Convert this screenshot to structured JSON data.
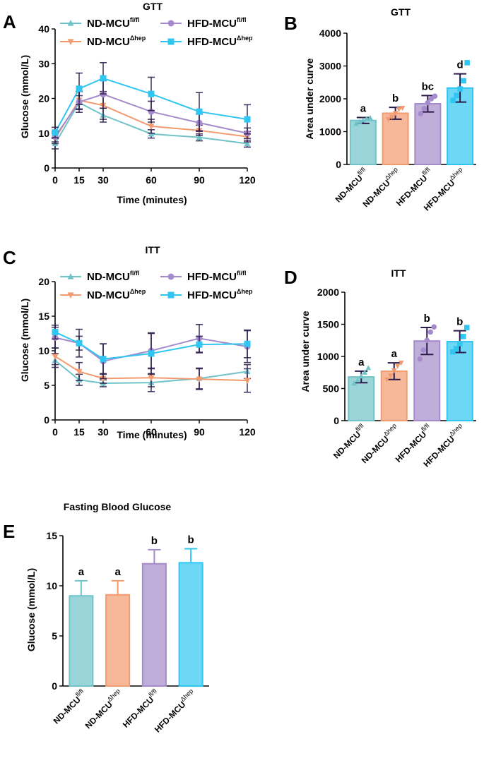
{
  "colors": {
    "nd_fl": "#6fc3c9",
    "nd_hep": "#f39a6f",
    "hfd_fl": "#a58bcb",
    "hfd_hep": "#2fc6f2",
    "err_dark": "#2b1a4a"
  },
  "groups": [
    {
      "key": "nd_fl",
      "base": "ND-MCU",
      "sup": "fl/fl",
      "marker": "triangle-up"
    },
    {
      "key": "nd_hep",
      "base": "ND-MCU",
      "sup": "Δhep",
      "marker": "triangle-down"
    },
    {
      "key": "hfd_fl",
      "base": "HFD-MCU",
      "sup": "fl/fl",
      "marker": "circle"
    },
    {
      "key": "hfd_hep",
      "base": "HFD-MCU",
      "sup": "Δhep",
      "marker": "square"
    }
  ],
  "chart_data": [
    {
      "id": "A",
      "letter": "A",
      "type": "line",
      "title": "GTT",
      "xlabel": "Time (minutes)",
      "ylabel": "Glucose (mmol/L)",
      "x": [
        0,
        15,
        30,
        60,
        90,
        120
      ],
      "ylim": [
        0,
        40
      ],
      "yticks": [
        0,
        10,
        20,
        30,
        40
      ],
      "series": [
        {
          "key": "nd_fl",
          "values": [
            7.0,
            18.8,
            15.2,
            9.8,
            8.8,
            7.0
          ],
          "err": [
            1.5,
            2.0,
            2.0,
            1.2,
            1.0,
            1.0
          ]
        },
        {
          "key": "nd_hep",
          "values": [
            8.5,
            19.5,
            18.0,
            12.0,
            10.8,
            9.0
          ],
          "err": [
            1.5,
            2.5,
            4.0,
            2.0,
            1.5,
            1.5
          ]
        },
        {
          "key": "hfd_fl",
          "values": [
            9.0,
            19.0,
            21.2,
            16.2,
            13.0,
            10.0
          ],
          "err": [
            1.5,
            3.0,
            4.0,
            3.0,
            2.5,
            1.5
          ]
        },
        {
          "key": "hfd_hep",
          "values": [
            10.2,
            22.8,
            25.8,
            21.3,
            16.2,
            14.0
          ],
          "err": [
            1.5,
            4.5,
            4.5,
            4.8,
            5.5,
            4.2
          ]
        }
      ]
    },
    {
      "id": "B",
      "letter": "B",
      "type": "bar",
      "title": "GTT",
      "xlabel": "",
      "ylabel": "Area under curve",
      "ylim": [
        0,
        4000
      ],
      "yticks": [
        0,
        1000,
        2000,
        3000,
        4000
      ],
      "bars": [
        {
          "key": "nd_fl",
          "value": 1340,
          "err": 90,
          "sig": "a",
          "points": [
            1240,
            1300,
            1350,
            1390,
            1420
          ]
        },
        {
          "key": "nd_hep",
          "value": 1560,
          "err": 180,
          "sig": "b",
          "points": [
            1380,
            1450,
            1560,
            1680,
            1720
          ]
        },
        {
          "key": "hfd_fl",
          "value": 1850,
          "err": 250,
          "sig": "bc",
          "points": [
            1550,
            1700,
            1880,
            2000,
            2080
          ]
        },
        {
          "key": "hfd_hep",
          "value": 2330,
          "err": 430,
          "sig": "d",
          "points": [
            1950,
            2100,
            2300,
            2550,
            3100
          ]
        }
      ]
    },
    {
      "id": "C",
      "letter": "C",
      "type": "line",
      "title": "ITT",
      "xlabel": "Time (minutes)",
      "ylabel": "Glucose (mmol/L)",
      "x": [
        0,
        15,
        30,
        60,
        90,
        120
      ],
      "ylim": [
        0,
        20
      ],
      "yticks": [
        0,
        5,
        10,
        15,
        20
      ],
      "series": [
        {
          "key": "nd_fl",
          "values": [
            8.6,
            5.8,
            5.3,
            5.4,
            6.0,
            7.0
          ],
          "err": [
            1.0,
            0.8,
            0.5,
            1.3,
            1.5,
            1.0
          ]
        },
        {
          "key": "nd_hep",
          "values": [
            9.2,
            7.0,
            6.0,
            6.1,
            5.9,
            5.7
          ],
          "err": [
            1.2,
            1.3,
            0.7,
            1.3,
            1.5,
            1.7
          ]
        },
        {
          "key": "hfd_fl",
          "values": [
            11.9,
            11.1,
            8.5,
            10.0,
            11.8,
            10.6
          ],
          "err": [
            1.5,
            2.0,
            2.5,
            2.5,
            2.0,
            2.3
          ]
        },
        {
          "key": "hfd_hep",
          "values": [
            12.7,
            11.1,
            8.8,
            9.6,
            10.9,
            11.0
          ],
          "err": [
            1.0,
            1.0,
            2.2,
            3.0,
            1.2,
            2.0
          ]
        }
      ]
    },
    {
      "id": "D",
      "letter": "D",
      "type": "bar",
      "title": "ITT",
      "xlabel": "",
      "ylabel": "Area under curve",
      "ylim": [
        0,
        2000
      ],
      "yticks": [
        0,
        500,
        1000,
        1500,
        2000
      ],
      "bars": [
        {
          "key": "nd_fl",
          "value": 680,
          "err": 90,
          "sig": "a",
          "points": [
            580,
            630,
            690,
            750,
            820
          ]
        },
        {
          "key": "nd_hep",
          "value": 770,
          "err": 130,
          "sig": "a",
          "points": [
            640,
            700,
            780,
            850,
            900
          ]
        },
        {
          "key": "hfd_fl",
          "value": 1240,
          "err": 210,
          "sig": "b",
          "points": [
            960,
            1100,
            1250,
            1380,
            1460
          ]
        },
        {
          "key": "hfd_hep",
          "value": 1230,
          "err": 170,
          "sig": "b",
          "points": [
            1070,
            1120,
            1200,
            1310,
            1450
          ]
        }
      ]
    },
    {
      "id": "E",
      "letter": "E",
      "type": "bar",
      "title": "Fasting Blood Glucose",
      "xlabel": "",
      "ylabel": "Glucose (mmol/L)",
      "ylim": [
        0,
        15
      ],
      "yticks": [
        0,
        5,
        10,
        15
      ],
      "bars": [
        {
          "key": "nd_fl",
          "value": 9.0,
          "err": 1.5,
          "sig": "a",
          "points": []
        },
        {
          "key": "nd_hep",
          "value": 9.1,
          "err": 1.4,
          "sig": "a",
          "points": []
        },
        {
          "key": "hfd_fl",
          "value": 12.2,
          "err": 1.4,
          "sig": "b",
          "points": []
        },
        {
          "key": "hfd_hep",
          "value": 12.3,
          "err": 1.4,
          "sig": "b",
          "points": []
        }
      ]
    }
  ]
}
